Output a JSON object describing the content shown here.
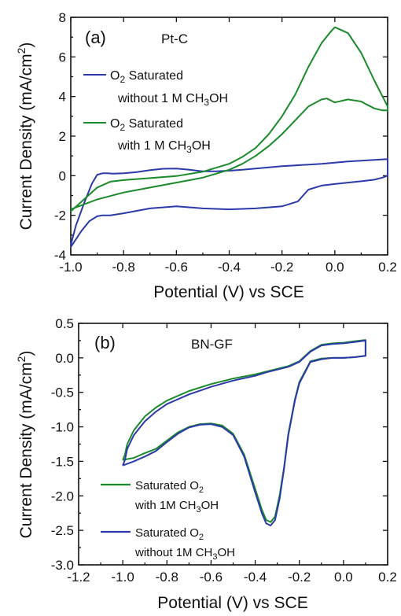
{
  "chart_data": [
    {
      "type": "line",
      "panel_label": "(a)",
      "title": "Pt-C",
      "xlabel": "Potential (V) vs SCE",
      "ylabel": "Current Density (mA/cm²)",
      "xlim": [
        -1.0,
        0.2
      ],
      "ylim": [
        -4,
        8
      ],
      "xticks": [
        "-1.0",
        "-0.8",
        "-0.6",
        "-0.4",
        "-0.2",
        "0.0",
        "0.2"
      ],
      "yticks": [
        "-4",
        "-2",
        "0",
        "2",
        "4",
        "6",
        "8"
      ],
      "grid": false,
      "legend_position": "top-left",
      "series": [
        {
          "name": "O₂ Saturated without 1 M CH₃OH",
          "color": "#2b3aa8",
          "x": [
            -1.0,
            -0.98,
            -0.95,
            -0.92,
            -0.9,
            -0.88,
            -0.86,
            -0.84,
            -0.8,
            -0.75,
            -0.7,
            -0.65,
            -0.6,
            -0.55,
            -0.5,
            -0.45,
            -0.4,
            -0.35,
            -0.3,
            -0.25,
            -0.2,
            -0.15,
            -0.1,
            -0.05,
            0.0,
            0.05,
            0.1,
            0.15,
            0.2,
            0.2,
            0.18,
            0.15,
            0.1,
            0.05,
            0.0,
            -0.05,
            -0.1,
            -0.12,
            -0.14,
            -0.2,
            -0.3,
            -0.4,
            -0.5,
            -0.6,
            -0.7,
            -0.8,
            -0.85,
            -0.88,
            -0.9,
            -0.93,
            -0.96,
            -0.98,
            -1.0
          ],
          "y": [
            -3.5,
            -2.5,
            -1.4,
            -0.4,
            0.05,
            0.12,
            0.12,
            0.1,
            0.12,
            0.18,
            0.28,
            0.35,
            0.36,
            0.3,
            0.22,
            0.22,
            0.25,
            0.3,
            0.36,
            0.42,
            0.48,
            0.52,
            0.56,
            0.6,
            0.66,
            0.72,
            0.76,
            0.8,
            0.84,
            0.0,
            -0.1,
            -0.2,
            -0.28,
            -0.35,
            -0.42,
            -0.5,
            -0.7,
            -1.0,
            -1.3,
            -1.55,
            -1.65,
            -1.7,
            -1.65,
            -1.55,
            -1.65,
            -1.9,
            -2.0,
            -2.0,
            -2.05,
            -2.3,
            -2.8,
            -3.2,
            -3.6
          ]
        },
        {
          "name": "O₂ Saturated with 1 M CH₃OH",
          "color": "#1a8a2a",
          "x": [
            -1.0,
            -0.95,
            -0.9,
            -0.85,
            -0.8,
            -0.7,
            -0.6,
            -0.5,
            -0.4,
            -0.35,
            -0.3,
            -0.25,
            -0.2,
            -0.15,
            -0.1,
            -0.05,
            -0.02,
            0.0,
            0.05,
            0.1,
            0.15,
            0.2,
            0.2,
            0.18,
            0.15,
            0.12,
            0.1,
            0.05,
            0.0,
            -0.03,
            -0.05,
            -0.1,
            -0.15,
            -0.2,
            -0.25,
            -0.3,
            -0.35,
            -0.4,
            -0.5,
            -0.6,
            -0.7,
            -0.8,
            -0.9,
            -1.0
          ],
          "y": [
            -1.8,
            -1.2,
            -0.6,
            -0.3,
            -0.22,
            -0.12,
            -0.02,
            0.2,
            0.6,
            0.95,
            1.4,
            2.1,
            3.0,
            4.1,
            5.5,
            6.7,
            7.2,
            7.5,
            7.2,
            6.2,
            4.8,
            3.5,
            3.3,
            3.3,
            3.4,
            3.6,
            3.75,
            3.85,
            3.7,
            3.9,
            3.85,
            3.5,
            2.8,
            2.1,
            1.5,
            1.0,
            0.6,
            0.3,
            -0.1,
            -0.35,
            -0.6,
            -0.85,
            -1.2,
            -1.7
          ]
        }
      ]
    },
    {
      "type": "line",
      "panel_label": "(b)",
      "title": "BN-GF",
      "xlabel": "Potential (V) vs SCE",
      "ylabel": "Current Density (mA/cm²)",
      "xlim": [
        -1.2,
        0.2
      ],
      "ylim": [
        -3.0,
        0.5
      ],
      "xticks": [
        "-1.2",
        "-1.0",
        "-0.8",
        "-0.6",
        "-0.4",
        "-0.2",
        "0.0",
        "0.2"
      ],
      "yticks": [
        "-3.0",
        "-2.5",
        "-2.0",
        "-1.5",
        "-1.0",
        "-0.5",
        "0.0",
        "0.5"
      ],
      "grid": false,
      "legend_position": "bottom-left",
      "series": [
        {
          "name": "Saturated O₂ with 1M CH₃OH",
          "color": "#1a8a2a",
          "x": [
            -1.0,
            -0.95,
            -0.9,
            -0.85,
            -0.8,
            -0.75,
            -0.7,
            -0.65,
            -0.6,
            -0.55,
            -0.5,
            -0.45,
            -0.4,
            -0.37,
            -0.35,
            -0.33,
            -0.31,
            -0.29,
            -0.27,
            -0.25,
            -0.22,
            -0.2,
            -0.15,
            -0.1,
            -0.05,
            0.0,
            0.05,
            0.1,
            0.1,
            0.05,
            0.0,
            -0.05,
            -0.1,
            -0.15,
            -0.2,
            -0.25,
            -0.3,
            -0.35,
            -0.4,
            -0.5,
            -0.6,
            -0.7,
            -0.8,
            -0.85,
            -0.9,
            -0.95,
            -0.98,
            -0.99,
            -1.0
          ],
          "y": [
            -1.48,
            -1.45,
            -1.38,
            -1.32,
            -1.2,
            -1.08,
            -1.0,
            -0.96,
            -0.95,
            -0.98,
            -1.1,
            -1.4,
            -1.9,
            -2.2,
            -2.35,
            -2.38,
            -2.3,
            -2.0,
            -1.6,
            -1.1,
            -0.6,
            -0.35,
            -0.05,
            -0.01,
            0.0,
            0.0,
            0.01,
            0.03,
            0.26,
            0.24,
            0.22,
            0.21,
            0.19,
            0.1,
            -0.05,
            -0.12,
            -0.16,
            -0.2,
            -0.24,
            -0.3,
            -0.38,
            -0.48,
            -0.62,
            -0.72,
            -0.85,
            -1.05,
            -1.25,
            -1.4,
            -1.48
          ]
        },
        {
          "name": "Saturated  O₂ without 1M CH₃OH",
          "color": "#2b3aa8",
          "x": [
            -1.0,
            -0.95,
            -0.9,
            -0.85,
            -0.8,
            -0.75,
            -0.7,
            -0.65,
            -0.6,
            -0.55,
            -0.5,
            -0.45,
            -0.4,
            -0.37,
            -0.35,
            -0.33,
            -0.31,
            -0.29,
            -0.27,
            -0.25,
            -0.22,
            -0.2,
            -0.15,
            -0.1,
            -0.05,
            0.0,
            0.05,
            0.1,
            0.1,
            0.05,
            0.0,
            -0.05,
            -0.1,
            -0.15,
            -0.2,
            -0.25,
            -0.3,
            -0.35,
            -0.4,
            -0.5,
            -0.6,
            -0.7,
            -0.8,
            -0.85,
            -0.9,
            -0.95,
            -0.98,
            -0.99,
            -1.0
          ],
          "y": [
            -1.56,
            -1.5,
            -1.43,
            -1.35,
            -1.22,
            -1.1,
            -1.01,
            -0.97,
            -0.96,
            -1.0,
            -1.12,
            -1.43,
            -1.95,
            -2.25,
            -2.4,
            -2.43,
            -2.35,
            -2.05,
            -1.62,
            -1.12,
            -0.62,
            -0.37,
            -0.06,
            -0.02,
            0.0,
            0.0,
            0.01,
            0.03,
            0.25,
            0.23,
            0.21,
            0.2,
            0.18,
            0.09,
            -0.06,
            -0.13,
            -0.17,
            -0.21,
            -0.26,
            -0.33,
            -0.42,
            -0.53,
            -0.67,
            -0.78,
            -0.92,
            -1.12,
            -1.32,
            -1.48,
            -1.56
          ]
        }
      ]
    }
  ],
  "legend_a": [
    {
      "line1_pre": "O",
      "line1_sub": "2",
      "line1_post": " Saturated",
      "line2_pre": "without 1 M CH",
      "line2_sub": "3",
      "line2_post": "OH"
    },
    {
      "line1_pre": "O",
      "line1_sub": "2",
      "line1_post": " Saturated",
      "line2_pre": "with 1 M CH",
      "line2_sub": "3",
      "line2_post": "OH"
    }
  ],
  "legend_b": [
    {
      "line1_pre": "Saturated O",
      "line1_sub": "2",
      "line2_pre": "with 1M CH",
      "line2_sub": "3",
      "line2_post": "OH"
    },
    {
      "line1_pre": "Saturated  O",
      "line1_sub": "2",
      "line2_pre": "without 1M CH",
      "line2_sub": "3",
      "line2_post": "OH"
    }
  ],
  "ylabel_parts": {
    "pre": "Current Density (mA/cm",
    "sup": "2",
    "post": ")"
  }
}
